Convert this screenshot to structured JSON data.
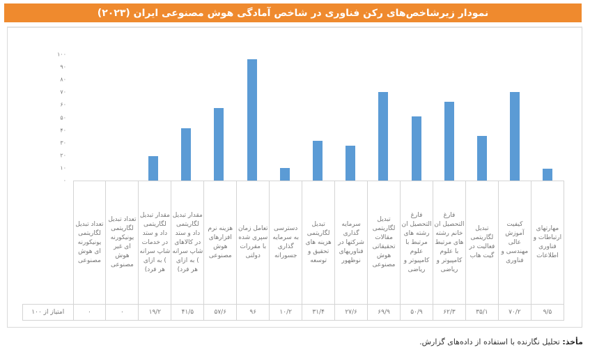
{
  "header": {
    "title": "نمودار زیرشاخص‌های رکن فناوری در شاخص آمادگی هوش مصنوعی ایران (۲۰۲۳)",
    "background_color": "#ef8a2e"
  },
  "y_axis": {
    "ticks": [
      "۱۰۰",
      "۹۰",
      "۸۰",
      "۷۰",
      "۶۰",
      "۵۰",
      "۴۰",
      "۳۰",
      "۲۰",
      "۱۰",
      "۰"
    ]
  },
  "table": {
    "row_label": "امتیاز از ۱۰۰",
    "categories": [
      "تعداد تبدیل لگاریتمی یونیکورنه ای هوش مصنوعی",
      "تعداد تبدیل لگاریتمی یونیکورنه ای غیر هوش مصنوعی",
      "مقدار تبدیل لگاریتمی داد و ستد در خدمات شاپ سرانه ) به ازای هر فرد)",
      "مقدار تبدیل لگاریتمی داد و ستد در کالاهای شاپ سرانه ) به ازای هر فرد)",
      "هزینه نرم افزارهای هوش مصنوعی",
      "تعامل زمان سپری شده با مقررات دولتی",
      "دسترسی به سرمایه گذاری جسورانه",
      "تبدیل لگاریتمی هزینه های تحقیق و توسعه",
      "سرمایه گذاری شرکتها در فناوریهای نوظهور",
      "تبدیل لگاریتمی مقالات تحقیقاتی هوش مصنوعی",
      "فارغ التحصیل ان رشته های مرتبط با علوم کامپیوتر و ریاضی",
      "فارغ التحصیل ان خانم رشته های مرتبط با علوم کامپیوتر و ریاضی",
      "تبدیل لگاریتمی فعالیت در گیت هاب",
      "کیفیت آموزش عالی مهندسی و فناوری",
      "مهارتهای ارتباطات و فناوری اطلاعات"
    ],
    "values_display": [
      "۰",
      "۰",
      "۱۹/۲",
      "۴۱/۵",
      "۵۷/۶",
      "۹۶",
      "۱۰/۲",
      "۳۱/۴",
      "۲۷/۶",
      "۶۹/۹",
      "۵۰/۹",
      "۶۲/۳",
      "۳۵/۱",
      "۷۰/۲",
      "۹/۵"
    ]
  },
  "footer": {
    "source_label": "مأخذ:",
    "source_text": " تحلیل نگارنده با استفاده از داده‌های گزارش."
  },
  "chart_data": {
    "type": "bar",
    "title": "نمودار زیرشاخص‌های رکن فناوری در شاخص آمادگی هوش مصنوعی ایران (۲۰۲۳)",
    "xlabel": "",
    "ylabel": "امتیاز از ۱۰۰",
    "ylim": [
      0,
      100
    ],
    "y_ticks": [
      0,
      10,
      20,
      30,
      40,
      50,
      60,
      70,
      80,
      90,
      100
    ],
    "grid": false,
    "legend": null,
    "bar_color": "#5b9bd5",
    "categories": [
      "تعداد تبدیل لگاریتمی یونیکورنه ای هوش مصنوعی",
      "تعداد تبدیل لگاریتمی یونیکورنه ای غیر هوش مصنوعی",
      "مقدار تبدیل لگاریتمی داد و ستد در خدمات شاپ سرانه (به ازای هر فرد)",
      "مقدار تبدیل لگاریتمی داد و ستد در کالاهای شاپ سرانه (به ازای هر فرد)",
      "هزینه نرم افزارهای هوش مصنوعی",
      "تعامل زمان سپری شده با مقررات دولتی",
      "دسترسی به سرمایه گذاری جسورانه",
      "تبدیل لگاریتمی هزینه های تحقیق و توسعه",
      "سرمایه گذاری شرکتها در فناوریهای نوظهور",
      "تبدیل لگاریتمی مقالات تحقیقاتی هوش مصنوعی",
      "فارغ التحصیلان رشته های مرتبط با علوم کامپیوتر و ریاضی",
      "فارغ التحصیلان خانم رشته های مرتبط با علوم کامپیوتر و ریاضی",
      "تبدیل لگاریتمی فعالیت در گیت هاب",
      "کیفیت آموزش عالی مهندسی و فناوری",
      "مهارتهای ارتباطات و فناوری اطلاعات"
    ],
    "series": [
      {
        "name": "امتیاز از ۱۰۰",
        "values": [
          0,
          0,
          19.2,
          41.5,
          57.6,
          96,
          10.2,
          31.4,
          27.6,
          69.9,
          50.9,
          62.3,
          35.1,
          70.2,
          9.5
        ]
      }
    ]
  }
}
